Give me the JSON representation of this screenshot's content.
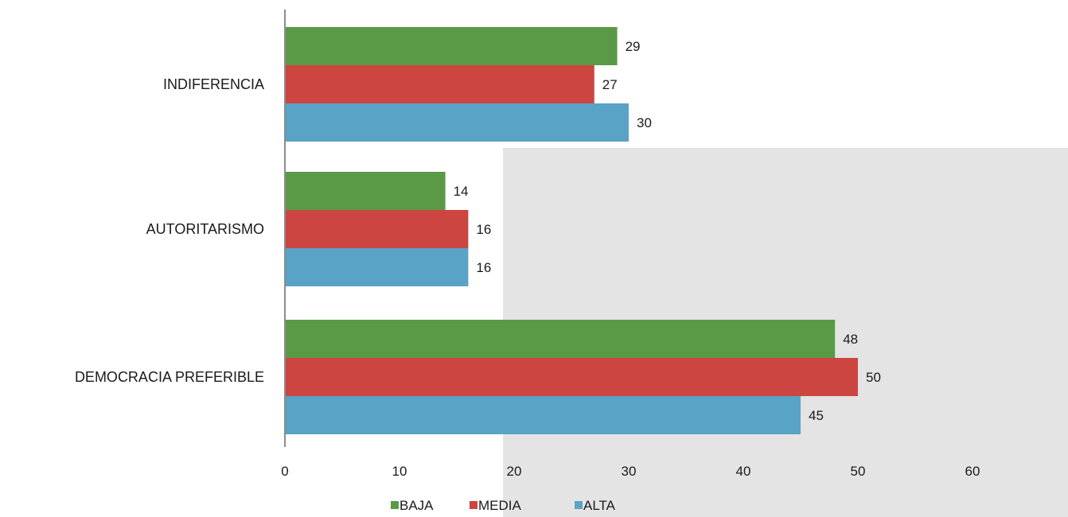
{
  "chart_data": {
    "type": "bar",
    "orientation": "horizontal",
    "title": "",
    "xlabel": "",
    "ylabel": "",
    "categories": [
      "INDIFERENCIA",
      "AUTORITARISMO",
      "DEMOCRACIA PREFERIBLE"
    ],
    "series": [
      {
        "name": "BAJA",
        "color": "#5a9a46",
        "values": [
          29,
          14,
          48
        ]
      },
      {
        "name": "MEDIA",
        "color": "#cc4541",
        "values": [
          27,
          16,
          50
        ]
      },
      {
        "name": "ALTA",
        "color": "#59a3c6",
        "values": [
          30,
          16,
          45
        ]
      }
    ],
    "xlim": [
      0,
      60
    ],
    "xticks": [
      "0",
      "10",
      "20",
      "30",
      "40",
      "50",
      "60"
    ],
    "grid": false,
    "legend_position": "bottom"
  }
}
